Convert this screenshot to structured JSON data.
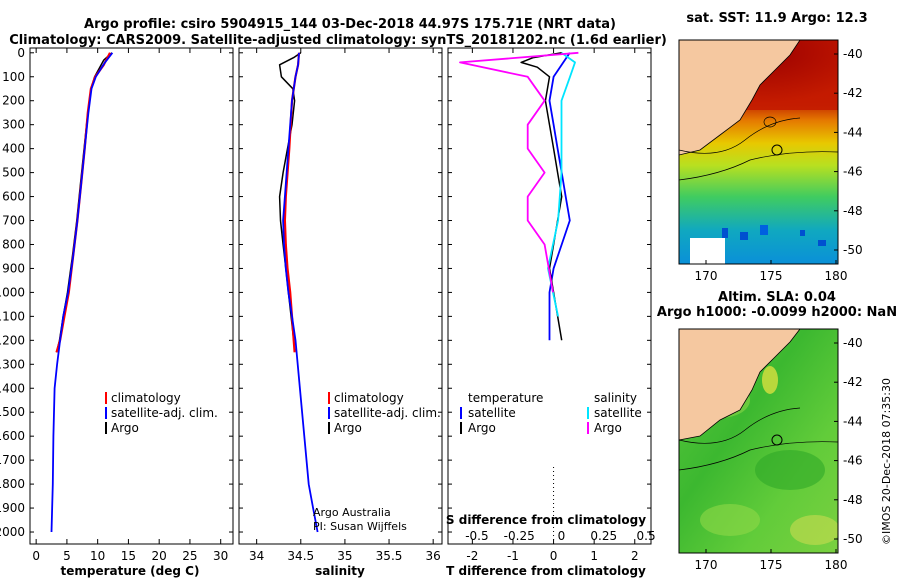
{
  "header": {
    "title_line1": "Argo profile: csiro 5904915_144 03-Dec-2018 44.97S 175.71E (NRT data)",
    "title_line2": "Climatology: CARS2009. Satellite-adjusted climatology: synTS_20181202.nc (1.6d earlier)"
  },
  "depth_ticks": [
    "0",
    "100",
    "200",
    "300",
    "400",
    "500",
    "600",
    "700",
    "800",
    "900",
    "1000",
    "1100",
    "1200",
    "1300",
    "1400",
    "1500",
    "1600",
    "1700",
    "1800",
    "1900",
    "2000"
  ],
  "legend": {
    "climatology": "climatology",
    "satellite_adj": "satellite-adj. clim.",
    "argo": "Argo",
    "temperature": "temperature",
    "salinity": "salinity",
    "satellite": "satellite"
  },
  "credit": {
    "line1": "Argo Australia",
    "line2": "PI: Susan Wijffels"
  },
  "map_panel": {
    "sst_title": "sat. SST: 11.9 Argo: 12.3",
    "sla_title_line1": "Altim. SLA: 0.04",
    "sla_title_line2": "Argo h1000: -0.0099 h2000: NaN",
    "lat_ticks": [
      "-40",
      "-42",
      "-44",
      "-46",
      "-48",
      "-50"
    ],
    "lon_ticks": [
      "170",
      "175",
      "180"
    ]
  },
  "timestamp": "©IMOS 20-Dec-2018 07:35:30",
  "colors": {
    "climatology": "#ff0000",
    "satellite": "#0000ff",
    "argo": "#000000",
    "sat_salinity": "#00e5ff",
    "argo_salinity": "#ff00ff",
    "land": "#f5c8a0"
  },
  "chart_data": [
    {
      "type": "line",
      "title": "",
      "xlabel": "temperature (deg C)",
      "ylabel": "depth",
      "xlim": [
        -1,
        32
      ],
      "ylim": [
        2050,
        -20
      ],
      "x_ticks": [
        "0",
        "5",
        "10",
        "15",
        "20",
        "25",
        "30"
      ],
      "series": [
        {
          "name": "climatology",
          "x": [
            12.0,
            11.0,
            9.6,
            8.9,
            8.4,
            7.9,
            7.3,
            6.7,
            6.0,
            5.3,
            4.6,
            3.9,
            3.3
          ],
          "y": [
            0,
            50,
            100,
            150,
            250,
            400,
            550,
            700,
            850,
            1000,
            1100,
            1200,
            1250
          ]
        },
        {
          "name": "satellite-adj. clim.",
          "x": [
            12.4,
            11.2,
            9.7,
            9.0,
            8.5,
            7.9,
            7.3,
            6.7,
            6.0,
            5.2,
            4.4,
            3.9,
            3.4,
            3.0,
            2.8,
            2.7,
            2.5
          ],
          "y": [
            0,
            40,
            100,
            150,
            250,
            400,
            550,
            700,
            850,
            1000,
            1100,
            1200,
            1300,
            1400,
            1600,
            1800,
            2000
          ]
        },
        {
          "name": "Argo",
          "x": [
            12.3,
            11.0,
            9.5,
            8.9,
            8.4,
            7.8,
            7.2,
            6.6,
            5.9,
            5.1,
            4.4,
            3.8,
            3.3
          ],
          "y": [
            0,
            30,
            100,
            150,
            250,
            400,
            550,
            700,
            850,
            1000,
            1100,
            1200,
            1250
          ]
        }
      ]
    },
    {
      "type": "line",
      "title": "",
      "xlabel": "salinity",
      "ylabel": "depth",
      "xlim": [
        33.8,
        36.1
      ],
      "ylim": [
        2050,
        -20
      ],
      "x_ticks": [
        "34",
        "34.5",
        "35",
        "35.5",
        "36"
      ],
      "series": [
        {
          "name": "climatology",
          "x": [
            34.48,
            34.47,
            34.44,
            34.4,
            34.37,
            34.33,
            34.32,
            34.33,
            34.35,
            34.38,
            34.4,
            34.42,
            34.43
          ],
          "y": [
            0,
            50,
            100,
            200,
            400,
            600,
            700,
            800,
            900,
            1000,
            1100,
            1200,
            1250
          ]
        },
        {
          "name": "satellite-adj. clim.",
          "x": [
            34.48,
            34.47,
            34.44,
            34.4,
            34.36,
            34.32,
            34.3,
            34.31,
            34.33,
            34.36,
            34.4,
            34.44,
            34.49,
            34.54,
            34.59,
            34.64,
            34.69
          ],
          "y": [
            0,
            50,
            100,
            200,
            400,
            600,
            700,
            800,
            900,
            1000,
            1100,
            1200,
            1400,
            1600,
            1800,
            1900,
            2000
          ]
        },
        {
          "name": "Argo",
          "x": [
            34.5,
            34.42,
            34.26,
            34.28,
            34.41,
            34.43,
            34.4,
            34.35,
            34.3,
            34.26,
            34.27,
            34.3,
            34.33,
            34.36,
            34.39,
            34.42
          ],
          "y": [
            0,
            20,
            50,
            100,
            150,
            200,
            300,
            400,
            500,
            600,
            700,
            800,
            900,
            1000,
            1100,
            1200
          ]
        }
      ]
    },
    {
      "type": "line",
      "title": "",
      "xlabel": "T difference from climatology",
      "x2label": "S difference from climatology",
      "ylabel": "depth",
      "xlim": [
        -2.6,
        2.4
      ],
      "ylim": [
        2050,
        -20
      ],
      "x_ticks": [
        "-2",
        "-1",
        "0",
        "1",
        "2"
      ],
      "x2_ticks": [
        "-0.5",
        "-0.25",
        "0",
        "0.25",
        "0.5"
      ],
      "series": [
        {
          "name": "temperature satellite",
          "x": [
            0.4,
            0.0,
            -0.1,
            0.0,
            0.1,
            0.2,
            0.3,
            0.4,
            0.2,
            0.0,
            -0.1,
            -0.1
          ],
          "y": [
            0,
            100,
            200,
            300,
            400,
            500,
            600,
            700,
            800,
            900,
            1000,
            1200
          ]
        },
        {
          "name": "temperature Argo",
          "x": [
            0.2,
            -0.5,
            -0.8,
            -0.4,
            -0.1,
            -0.2,
            -0.1,
            0.0,
            0.1,
            0.2,
            0.1,
            0.0,
            -0.1,
            0.0,
            0.2
          ],
          "y": [
            0,
            20,
            40,
            60,
            100,
            200,
            300,
            400,
            500,
            600,
            700,
            800,
            900,
            1000,
            1200
          ]
        },
        {
          "name": "salinity satellite",
          "x": [
            0.0,
            0.08,
            0.05,
            0.0,
            0.0,
            0.0,
            -0.02,
            -0.05,
            -0.08,
            -0.05,
            -0.02
          ],
          "y": [
            0,
            40,
            100,
            200,
            300,
            500,
            700,
            800,
            900,
            1000,
            1100
          ]
        },
        {
          "name": "salinity Argo",
          "x": [
            0.1,
            -0.6,
            -0.2,
            -0.1,
            -0.2,
            -0.2,
            -0.1,
            -0.2,
            -0.2,
            -0.1,
            -0.05
          ],
          "y": [
            0,
            40,
            100,
            200,
            300,
            400,
            500,
            600,
            700,
            800,
            1000
          ]
        }
      ]
    }
  ]
}
